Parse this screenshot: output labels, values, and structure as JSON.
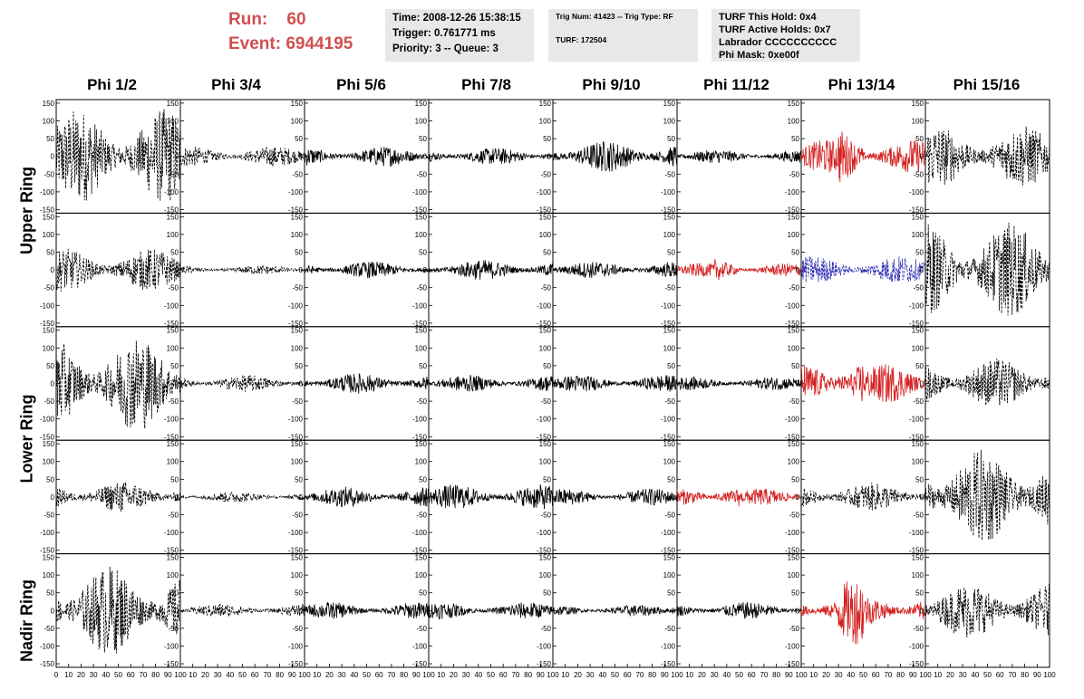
{
  "header": {
    "run_label": "Run:",
    "run_value": "60",
    "event_label": "Event:",
    "event_value": "6944195",
    "time": "Time: 2008-12-26 15:38:15",
    "trigger": "Trigger: 0.761771 ms",
    "priority": "Priority: 3 -- Queue: 3",
    "trig_num": "Trig Num: 41423 -- Trig Type: RF",
    "turf": "TURF: 172504",
    "turf_hold": "TURF This Hold: 0x4",
    "turf_active": "TURF Active Holds: 0x7",
    "labrador": "Labrador CCCCCCCCCC",
    "phi_mask": "Phi Mask: 0xe00f"
  },
  "columns": [
    "Phi 1/2",
    "Phi 3/4",
    "Phi 5/6",
    "Phi 7/8",
    "Phi 9/10",
    "Phi 11/12",
    "Phi 13/14",
    "Phi 15/16"
  ],
  "row_labels": [
    "Upper Ring",
    "Lower Ring",
    "Nadir Ring"
  ],
  "colors": {
    "black": "#000000",
    "red": "#d42020",
    "blue": "#2a2ab0",
    "run": "#d05050",
    "info_bg": "#e8e8e8"
  },
  "chart_data": {
    "type": "line",
    "grid": false,
    "xlim": [
      0,
      100
    ],
    "ylim": [
      -160,
      160
    ],
    "yticks": [
      150,
      100,
      50,
      0,
      -50,
      -100,
      -150
    ],
    "xticks": [
      0,
      10,
      20,
      30,
      40,
      50,
      60,
      70,
      80,
      90,
      100
    ],
    "panels": [
      [
        {
          "amp": 0.85,
          "color": "black",
          "dash": true
        },
        {
          "amp": 0.18,
          "color": "black",
          "dash": true
        },
        {
          "amp": 0.18,
          "color": "black",
          "dash": false
        },
        {
          "amp": 0.15,
          "color": "black",
          "dash": false
        },
        {
          "amp": 0.28,
          "color": "black",
          "dash": false
        },
        {
          "amp": 0.12,
          "color": "black",
          "dash": false
        },
        {
          "amp": 0.3,
          "color": "red",
          "dash": false
        },
        {
          "amp": 0.55,
          "color": "black",
          "dash": true
        }
      ],
      [
        {
          "amp": 0.38,
          "color": "black",
          "dash": true
        },
        {
          "amp": 0.08,
          "color": "black",
          "dash": true
        },
        {
          "amp": 0.15,
          "color": "black",
          "dash": false
        },
        {
          "amp": 0.18,
          "color": "black",
          "dash": false
        },
        {
          "amp": 0.15,
          "color": "black",
          "dash": false
        },
        {
          "amp": 0.12,
          "color": "red",
          "dash": false
        },
        {
          "amp": 0.25,
          "color": "blue",
          "dash": true
        },
        {
          "amp": 0.85,
          "color": "black",
          "dash": true
        }
      ],
      [
        {
          "amp": 0.85,
          "color": "black",
          "dash": true
        },
        {
          "amp": 0.15,
          "color": "black",
          "dash": true
        },
        {
          "amp": 0.18,
          "color": "black",
          "dash": false
        },
        {
          "amp": 0.15,
          "color": "black",
          "dash": false
        },
        {
          "amp": 0.15,
          "color": "black",
          "dash": false
        },
        {
          "amp": 0.12,
          "color": "black",
          "dash": false
        },
        {
          "amp": 0.35,
          "color": "red",
          "dash": false
        },
        {
          "amp": 0.45,
          "color": "black",
          "dash": true
        }
      ],
      [
        {
          "amp": 0.28,
          "color": "black",
          "dash": true
        },
        {
          "amp": 0.1,
          "color": "black",
          "dash": true
        },
        {
          "amp": 0.18,
          "color": "black",
          "dash": false
        },
        {
          "amp": 0.22,
          "color": "black",
          "dash": false
        },
        {
          "amp": 0.15,
          "color": "black",
          "dash": false
        },
        {
          "amp": 0.15,
          "color": "red",
          "dash": false
        },
        {
          "amp": 0.25,
          "color": "black",
          "dash": true
        },
        {
          "amp": 0.85,
          "color": "black",
          "dash": true
        }
      ],
      [
        {
          "amp": 0.8,
          "color": "black",
          "dash": true
        },
        {
          "amp": 0.12,
          "color": "black",
          "dash": true
        },
        {
          "amp": 0.15,
          "color": "black",
          "dash": false
        },
        {
          "amp": 0.15,
          "color": "black",
          "dash": false
        },
        {
          "amp": 0.1,
          "color": "black",
          "dash": false
        },
        {
          "amp": 0.15,
          "color": "black",
          "dash": false
        },
        {
          "amp": 0.3,
          "color": "red",
          "dash": false
        },
        {
          "amp": 0.5,
          "color": "black",
          "dash": true
        }
      ]
    ]
  }
}
